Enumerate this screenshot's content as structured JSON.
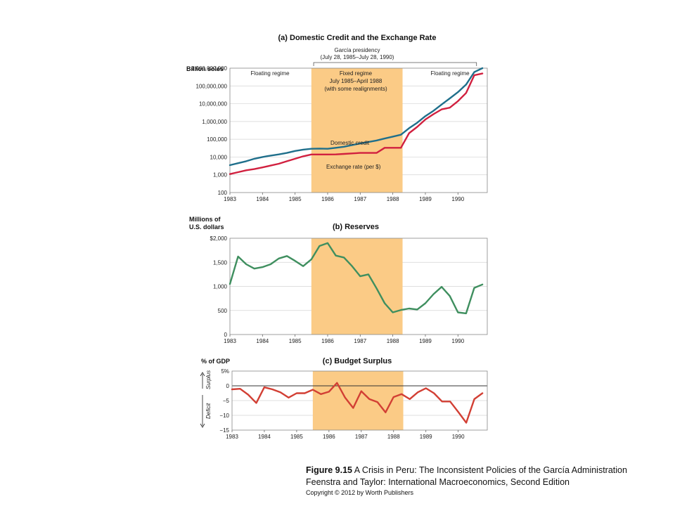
{
  "caption": {
    "figure_no": "Figure 9.15",
    "title": "A Crisis in Peru: The Inconsistent Policies of the García Administration",
    "book": "Feenstra and Taylor: International Macroeconomics, Second Edition",
    "copyright": "Copyright © 2012 by Worth Publishers"
  },
  "colors": {
    "domestic_credit": "#1f6f8b",
    "exchange_rate": "#d1203f",
    "reserves": "#3f8f5f",
    "budget": "#d23f34",
    "shade": "#fbcb86"
  },
  "chart_data": [
    {
      "type": "line",
      "title": "(a) Domestic Credit and the Exchange Rate",
      "ylabel": "Billion soles",
      "yscale": "log",
      "ylim": [
        100,
        1000000000
      ],
      "yticks": [
        100,
        1000,
        10000,
        100000,
        1000000,
        10000000,
        100000000,
        1000000000
      ],
      "ytick_labels": [
        "100",
        "1,000",
        "10,000",
        "100,000",
        "1,000,000",
        "10,000,000",
        "100,000,000",
        "1,000,000,000"
      ],
      "xlim": [
        1983,
        1990.9
      ],
      "xticks": [
        1983,
        1984,
        1985,
        1986,
        1987,
        1988,
        1989,
        1990
      ],
      "grid": true,
      "bracket_label": [
        "García presidency",
        "(July 28, 1985–July 28, 1990)"
      ],
      "bracket_range": [
        1985.57,
        1990.57
      ],
      "regimes": [
        {
          "lines": [
            "Floating regime"
          ]
        },
        {
          "lines": [
            "Fixed regime",
            "July 1985–April 1988",
            "(with some realignments)"
          ]
        },
        {
          "lines": [
            "Floating regime"
          ]
        }
      ],
      "shaded_range": [
        1985.5,
        1988.3
      ],
      "series": [
        {
          "name": "Domestic credit",
          "x": [
            1983.0,
            1983.25,
            1983.5,
            1983.75,
            1984.0,
            1984.25,
            1984.5,
            1984.75,
            1985.0,
            1985.25,
            1985.5,
            1985.75,
            1986.0,
            1986.25,
            1986.5,
            1986.75,
            1987.0,
            1987.25,
            1987.5,
            1987.75,
            1988.0,
            1988.25,
            1988.5,
            1988.75,
            1989.0,
            1989.25,
            1989.5,
            1989.75,
            1990.0,
            1990.25,
            1990.5,
            1990.75
          ],
          "y": [
            3500,
            4500,
            5800,
            8000,
            10000,
            12000,
            14000,
            17000,
            22000,
            26000,
            29000,
            30000,
            29000,
            33000,
            38000,
            47000,
            58000,
            70000,
            85000,
            110000,
            140000,
            180000,
            420000,
            850000,
            2000000,
            4000000,
            9000000,
            20000000,
            45000000,
            120000000,
            600000000,
            1000000000
          ]
        },
        {
          "name": "Exchange rate (per $)",
          "x": [
            1983.0,
            1983.25,
            1983.5,
            1983.75,
            1984.0,
            1984.25,
            1984.5,
            1984.75,
            1985.0,
            1985.25,
            1985.5,
            1985.75,
            1986.0,
            1986.25,
            1986.5,
            1986.75,
            1987.0,
            1987.25,
            1987.5,
            1987.75,
            1988.0,
            1988.25,
            1988.5,
            1988.75,
            1989.0,
            1989.25,
            1989.5,
            1989.75,
            1990.0,
            1990.25,
            1990.5,
            1990.75
          ],
          "y": [
            1100,
            1400,
            1800,
            2100,
            2600,
            3300,
            4200,
            5800,
            8000,
            11000,
            13900,
            13900,
            13900,
            14000,
            15000,
            16000,
            17000,
            17000,
            17000,
            33000,
            33000,
            33000,
            220000,
            500000,
            1300000,
            2600000,
            4800000,
            6000000,
            14000000,
            40000000,
            400000000,
            500000000
          ]
        }
      ]
    },
    {
      "type": "line",
      "title": "(b) Reserves",
      "ylabel": [
        "Millions of",
        "U.S. dollars"
      ],
      "ylim": [
        0,
        2000
      ],
      "yticks": [
        0,
        500,
        1000,
        1500,
        2000
      ],
      "ytick_labels": [
        "0",
        "500",
        "1,000",
        "1,500",
        "$2,000"
      ],
      "xlim": [
        1983,
        1990.9
      ],
      "xticks": [
        1983,
        1984,
        1985,
        1986,
        1987,
        1988,
        1989,
        1990
      ],
      "grid": true,
      "shaded_range": [
        1985.5,
        1988.3
      ],
      "series": [
        {
          "x": [
            1983.0,
            1983.25,
            1983.5,
            1983.75,
            1984.0,
            1984.25,
            1984.5,
            1984.75,
            1985.0,
            1985.25,
            1985.5,
            1985.75,
            1986.0,
            1986.25,
            1986.5,
            1986.75,
            1987.0,
            1987.25,
            1987.5,
            1987.75,
            1988.0,
            1988.25,
            1988.5,
            1988.75,
            1989.0,
            1989.25,
            1989.5,
            1989.75,
            1990.0,
            1990.25,
            1990.5,
            1990.75
          ],
          "y": [
            1050,
            1620,
            1460,
            1370,
            1400,
            1460,
            1580,
            1630,
            1530,
            1420,
            1560,
            1840,
            1900,
            1640,
            1600,
            1420,
            1210,
            1250,
            960,
            650,
            460,
            510,
            540,
            520,
            650,
            840,
            990,
            800,
            460,
            440,
            970,
            1040
          ]
        }
      ]
    },
    {
      "type": "line",
      "title": "(c) Budget Surplus",
      "ylabel": "% of GDP",
      "side_labels": [
        "Surplus",
        "Deficit"
      ],
      "ylim": [
        -15,
        5
      ],
      "yticks": [
        -15,
        -10,
        -5,
        0,
        5
      ],
      "ytick_labels": [
        "−15",
        "−10",
        "−5",
        "0",
        "5%"
      ],
      "xlim": [
        1983,
        1990.9
      ],
      "xticks": [
        1983,
        1984,
        1985,
        1986,
        1987,
        1988,
        1989,
        1990
      ],
      "grid": true,
      "zero_line": true,
      "shaded_range": [
        1985.5,
        1988.3
      ],
      "series": [
        {
          "x": [
            1983.0,
            1983.25,
            1983.5,
            1983.75,
            1984.0,
            1984.25,
            1984.5,
            1984.75,
            1985.0,
            1985.25,
            1985.5,
            1985.75,
            1986.0,
            1986.25,
            1986.5,
            1986.75,
            1987.0,
            1987.25,
            1987.5,
            1987.75,
            1988.0,
            1988.25,
            1988.5,
            1988.75,
            1989.0,
            1989.25,
            1989.5,
            1989.75,
            1990.0,
            1990.25,
            1990.5,
            1990.75
          ],
          "y": [
            -1.2,
            -1.0,
            -3.0,
            -5.8,
            -0.5,
            -1.2,
            -2.2,
            -4.0,
            -2.5,
            -2.5,
            -1.3,
            -2.8,
            -2.0,
            1.0,
            -4.0,
            -7.5,
            -1.8,
            -4.5,
            -5.5,
            -9.0,
            -3.8,
            -2.8,
            -4.5,
            -2.2,
            -0.8,
            -2.5,
            -5.3,
            -5.3,
            -8.8,
            -12.5,
            -4.5,
            -2.5
          ]
        }
      ]
    }
  ]
}
